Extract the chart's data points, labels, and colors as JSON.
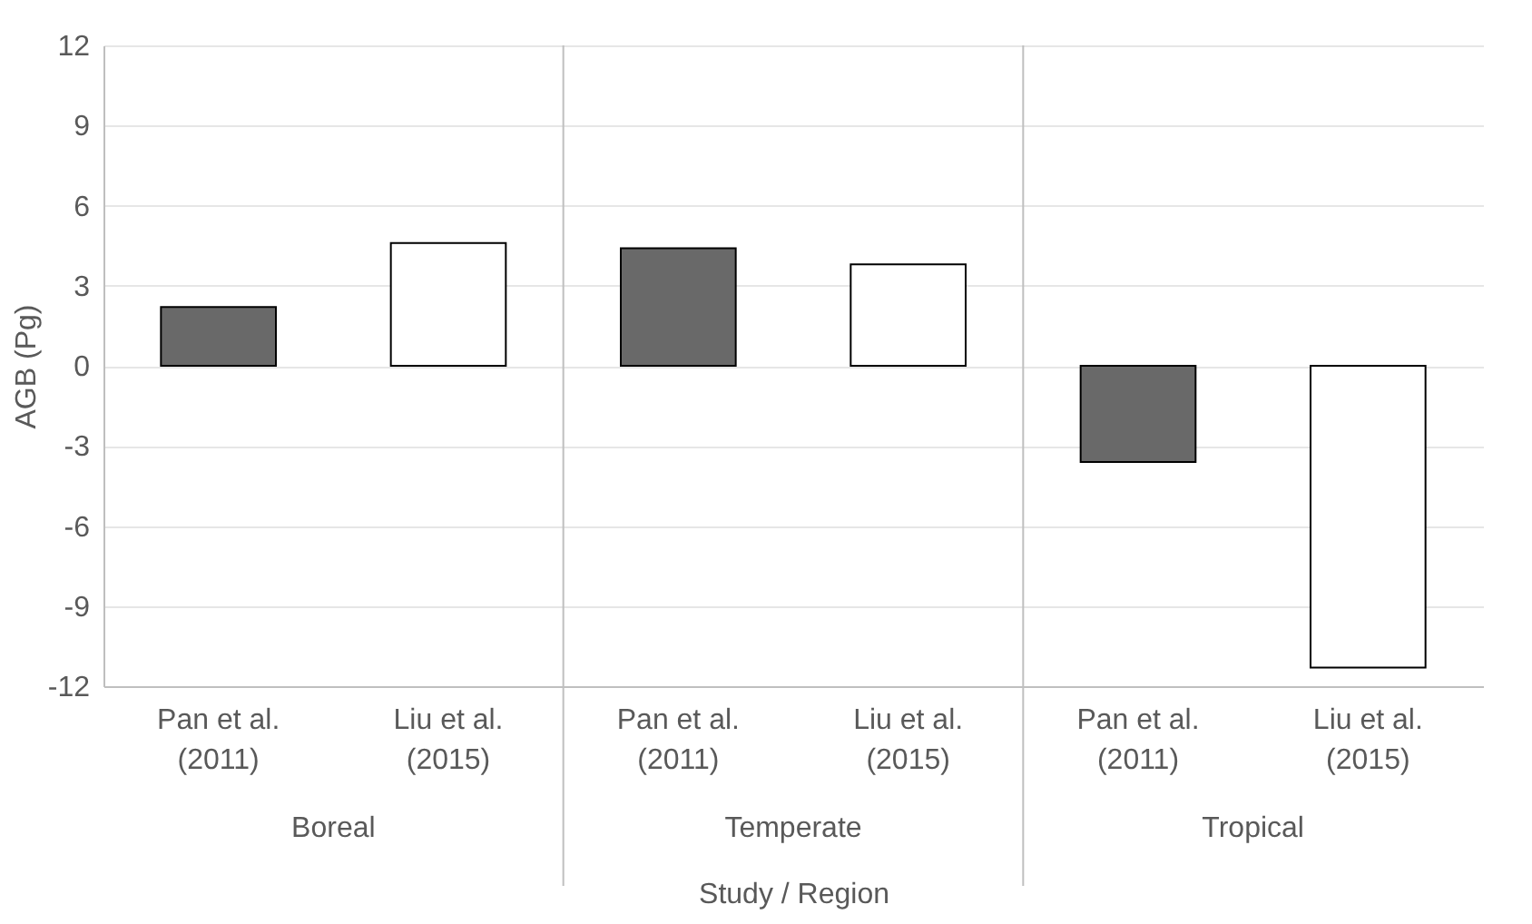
{
  "chart_data": {
    "type": "bar",
    "xlabel": "Study / Region",
    "ylabel": "AGB (Pg)",
    "categories": [
      "Pan et al. (2011)",
      "Liu et al. (2015)",
      "Pan et al. (2011)",
      "Liu et al. (2015)",
      "Pan et al. (2011)",
      "Liu et al. (2015)"
    ],
    "values": [
      2.2,
      4.6,
      4.4,
      3.8,
      -3.6,
      -11.3
    ],
    "colors": [
      "#696969",
      "#ffffff",
      "#696969",
      "#ffffff",
      "#696969",
      "#ffffff"
    ],
    "annotations": [
      "Boreal",
      "Temperate",
      "Tropical"
    ],
    "ylim": [
      -12,
      12
    ],
    "yticks": [
      -12,
      -9,
      -6,
      -3,
      0,
      3,
      6,
      9,
      12
    ],
    "grid": "y"
  }
}
